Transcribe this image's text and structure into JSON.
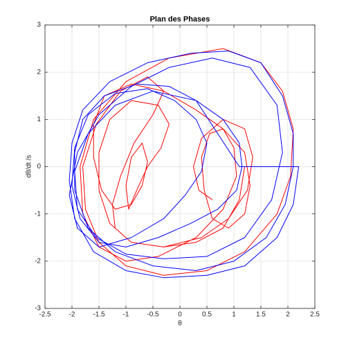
{
  "chart_data": {
    "type": "line",
    "title": "Plan des Phases",
    "x_label": "θ",
    "y_label": "dθ/dt /s",
    "xlim": [
      -2.5,
      2.5
    ],
    "ylim": [
      -3,
      3
    ],
    "xticks": [
      -2.5,
      -2,
      -1.5,
      -1,
      -0.5,
      0,
      0.5,
      1,
      1.5,
      2,
      2.5
    ],
    "yticks": [
      -3,
      -2,
      -1,
      0,
      1,
      2,
      3
    ],
    "grid": true,
    "series": [
      {
        "color": "#ff0000",
        "x": [
          1.2,
          1.1,
          0.8,
          0.3,
          -0.3,
          -0.9,
          -1.3,
          -1.5,
          -1.5,
          -1.3,
          -0.9,
          -0.4,
          -0.2,
          -0.35,
          -0.6,
          -0.8,
          -0.95,
          -1.0,
          -0.9,
          -0.7,
          -0.6,
          -0.7,
          -0.9,
          -1.2,
          -1.45,
          -1.6,
          -1.6,
          -1.4,
          -0.9,
          -0.3,
          0.3,
          0.8,
          1.2,
          1.3,
          1.2,
          0.9,
          0.6,
          0.45,
          0.4,
          0.55,
          0.8,
          1.0,
          1.05,
          0.8,
          0.3,
          -0.4,
          -1.0,
          -1.5,
          -1.8,
          -1.85,
          -1.6,
          -1.0,
          -0.2,
          0.8,
          1.5,
          1.9,
          2.1,
          2.05,
          1.8,
          1.2,
          0.5,
          -0.3,
          -1.0,
          -1.5,
          -1.75,
          -1.8,
          -1.55,
          -1.1,
          -0.6,
          -0.3,
          -0.5,
          -0.85,
          -1.1,
          -1.25,
          -1.2,
          -0.9,
          -0.3,
          0.4,
          0.9,
          1.25,
          1.35,
          1.2,
          0.8,
          0.4,
          0.25,
          0.35,
          0.6
        ],
        "values": [
          0,
          -0.7,
          -1.3,
          -1.6,
          -1.7,
          -1.6,
          -1.2,
          -0.5,
          0.3,
          1.0,
          1.4,
          1.3,
          0.9,
          0.4,
          0.0,
          -0.5,
          -0.9,
          -0.4,
          0.2,
          0.5,
          0.1,
          -0.4,
          -0.8,
          -0.9,
          -0.5,
          0.2,
          0.9,
          1.5,
          1.75,
          1.6,
          1.2,
          0.8,
          0.3,
          -0.4,
          -1.0,
          -1.3,
          -1.1,
          -0.5,
          0.2,
          0.7,
          0.8,
          0.4,
          -0.2,
          -0.9,
          -1.5,
          -1.9,
          -2.0,
          -1.7,
          -1.0,
          0.0,
          1.0,
          1.8,
          2.3,
          2.5,
          2.2,
          1.6,
          0.8,
          -0.2,
          -1.0,
          -1.8,
          -2.2,
          -2.3,
          -2.1,
          -1.6,
          -0.9,
          0.0,
          0.9,
          1.6,
          1.9,
          1.6,
          1.1,
          0.5,
          -0.2,
          -0.8,
          -1.3,
          -1.6,
          -1.7,
          -1.5,
          -1.1,
          -0.5,
          0.2,
          0.8,
          1.0,
          0.6,
          0.0,
          -0.5,
          -0.7
        ]
      },
      {
        "color": "#0000ff",
        "x": [
          1.1,
          2.2,
          2.1,
          1.8,
          1.2,
          0.5,
          -0.3,
          -1.0,
          -1.6,
          -1.95,
          -2.05,
          -2.0,
          -1.8,
          -1.3,
          -0.6,
          0.2,
          0.9,
          1.5,
          1.9,
          2.1,
          2.1,
          1.95,
          1.6,
          1.0,
          0.3,
          -0.5,
          -1.2,
          -1.7,
          -1.95,
          -1.95,
          -1.8,
          -1.4,
          -0.8,
          -0.2,
          0.3,
          0.8,
          1.1,
          1.15,
          1.05,
          0.7,
          0.2,
          -0.4,
          -1.0,
          -1.5,
          -1.85,
          -2.0,
          -1.95,
          -1.7,
          -1.2,
          -0.6,
          -0.1,
          0.3,
          0.5,
          0.4,
          0.1,
          -0.3,
          -0.9,
          -1.5,
          -1.9,
          -2.05,
          -1.9,
          -1.5,
          -0.9,
          -0.2,
          0.6,
          1.3,
          1.8,
          1.9,
          1.7,
          1.2,
          0.5,
          -0.3,
          -1.0,
          -1.55,
          -1.9,
          -1.95,
          -1.7,
          -1.2,
          -0.5,
          0.3,
          1.1
        ],
        "values": [
          0,
          0,
          -0.8,
          -1.5,
          -2.1,
          -2.3,
          -2.35,
          -2.2,
          -1.8,
          -1.1,
          -0.3,
          0.5,
          1.2,
          1.8,
          2.2,
          2.4,
          2.45,
          2.2,
          1.5,
          0.7,
          0.0,
          -0.8,
          -1.5,
          -2.0,
          -2.2,
          -2.1,
          -1.8,
          -1.3,
          -0.5,
          0.3,
          1.0,
          1.5,
          1.75,
          1.7,
          1.4,
          1.0,
          0.5,
          0.0,
          -0.5,
          -0.9,
          -1.2,
          -1.5,
          -1.7,
          -1.6,
          -1.1,
          -0.4,
          0.4,
          1.1,
          1.55,
          1.65,
          1.4,
          1.0,
          0.5,
          -0.1,
          -0.6,
          -1.1,
          -1.5,
          -1.7,
          -1.3,
          -0.6,
          0.3,
          1.1,
          1.7,
          2.1,
          2.3,
          2.1,
          1.3,
          0.3,
          -0.7,
          -1.5,
          -1.9,
          -1.95,
          -1.85,
          -1.5,
          -0.9,
          -0.1,
          0.7,
          1.3,
          1.6,
          1.4,
          0.0
        ]
      }
    ]
  }
}
